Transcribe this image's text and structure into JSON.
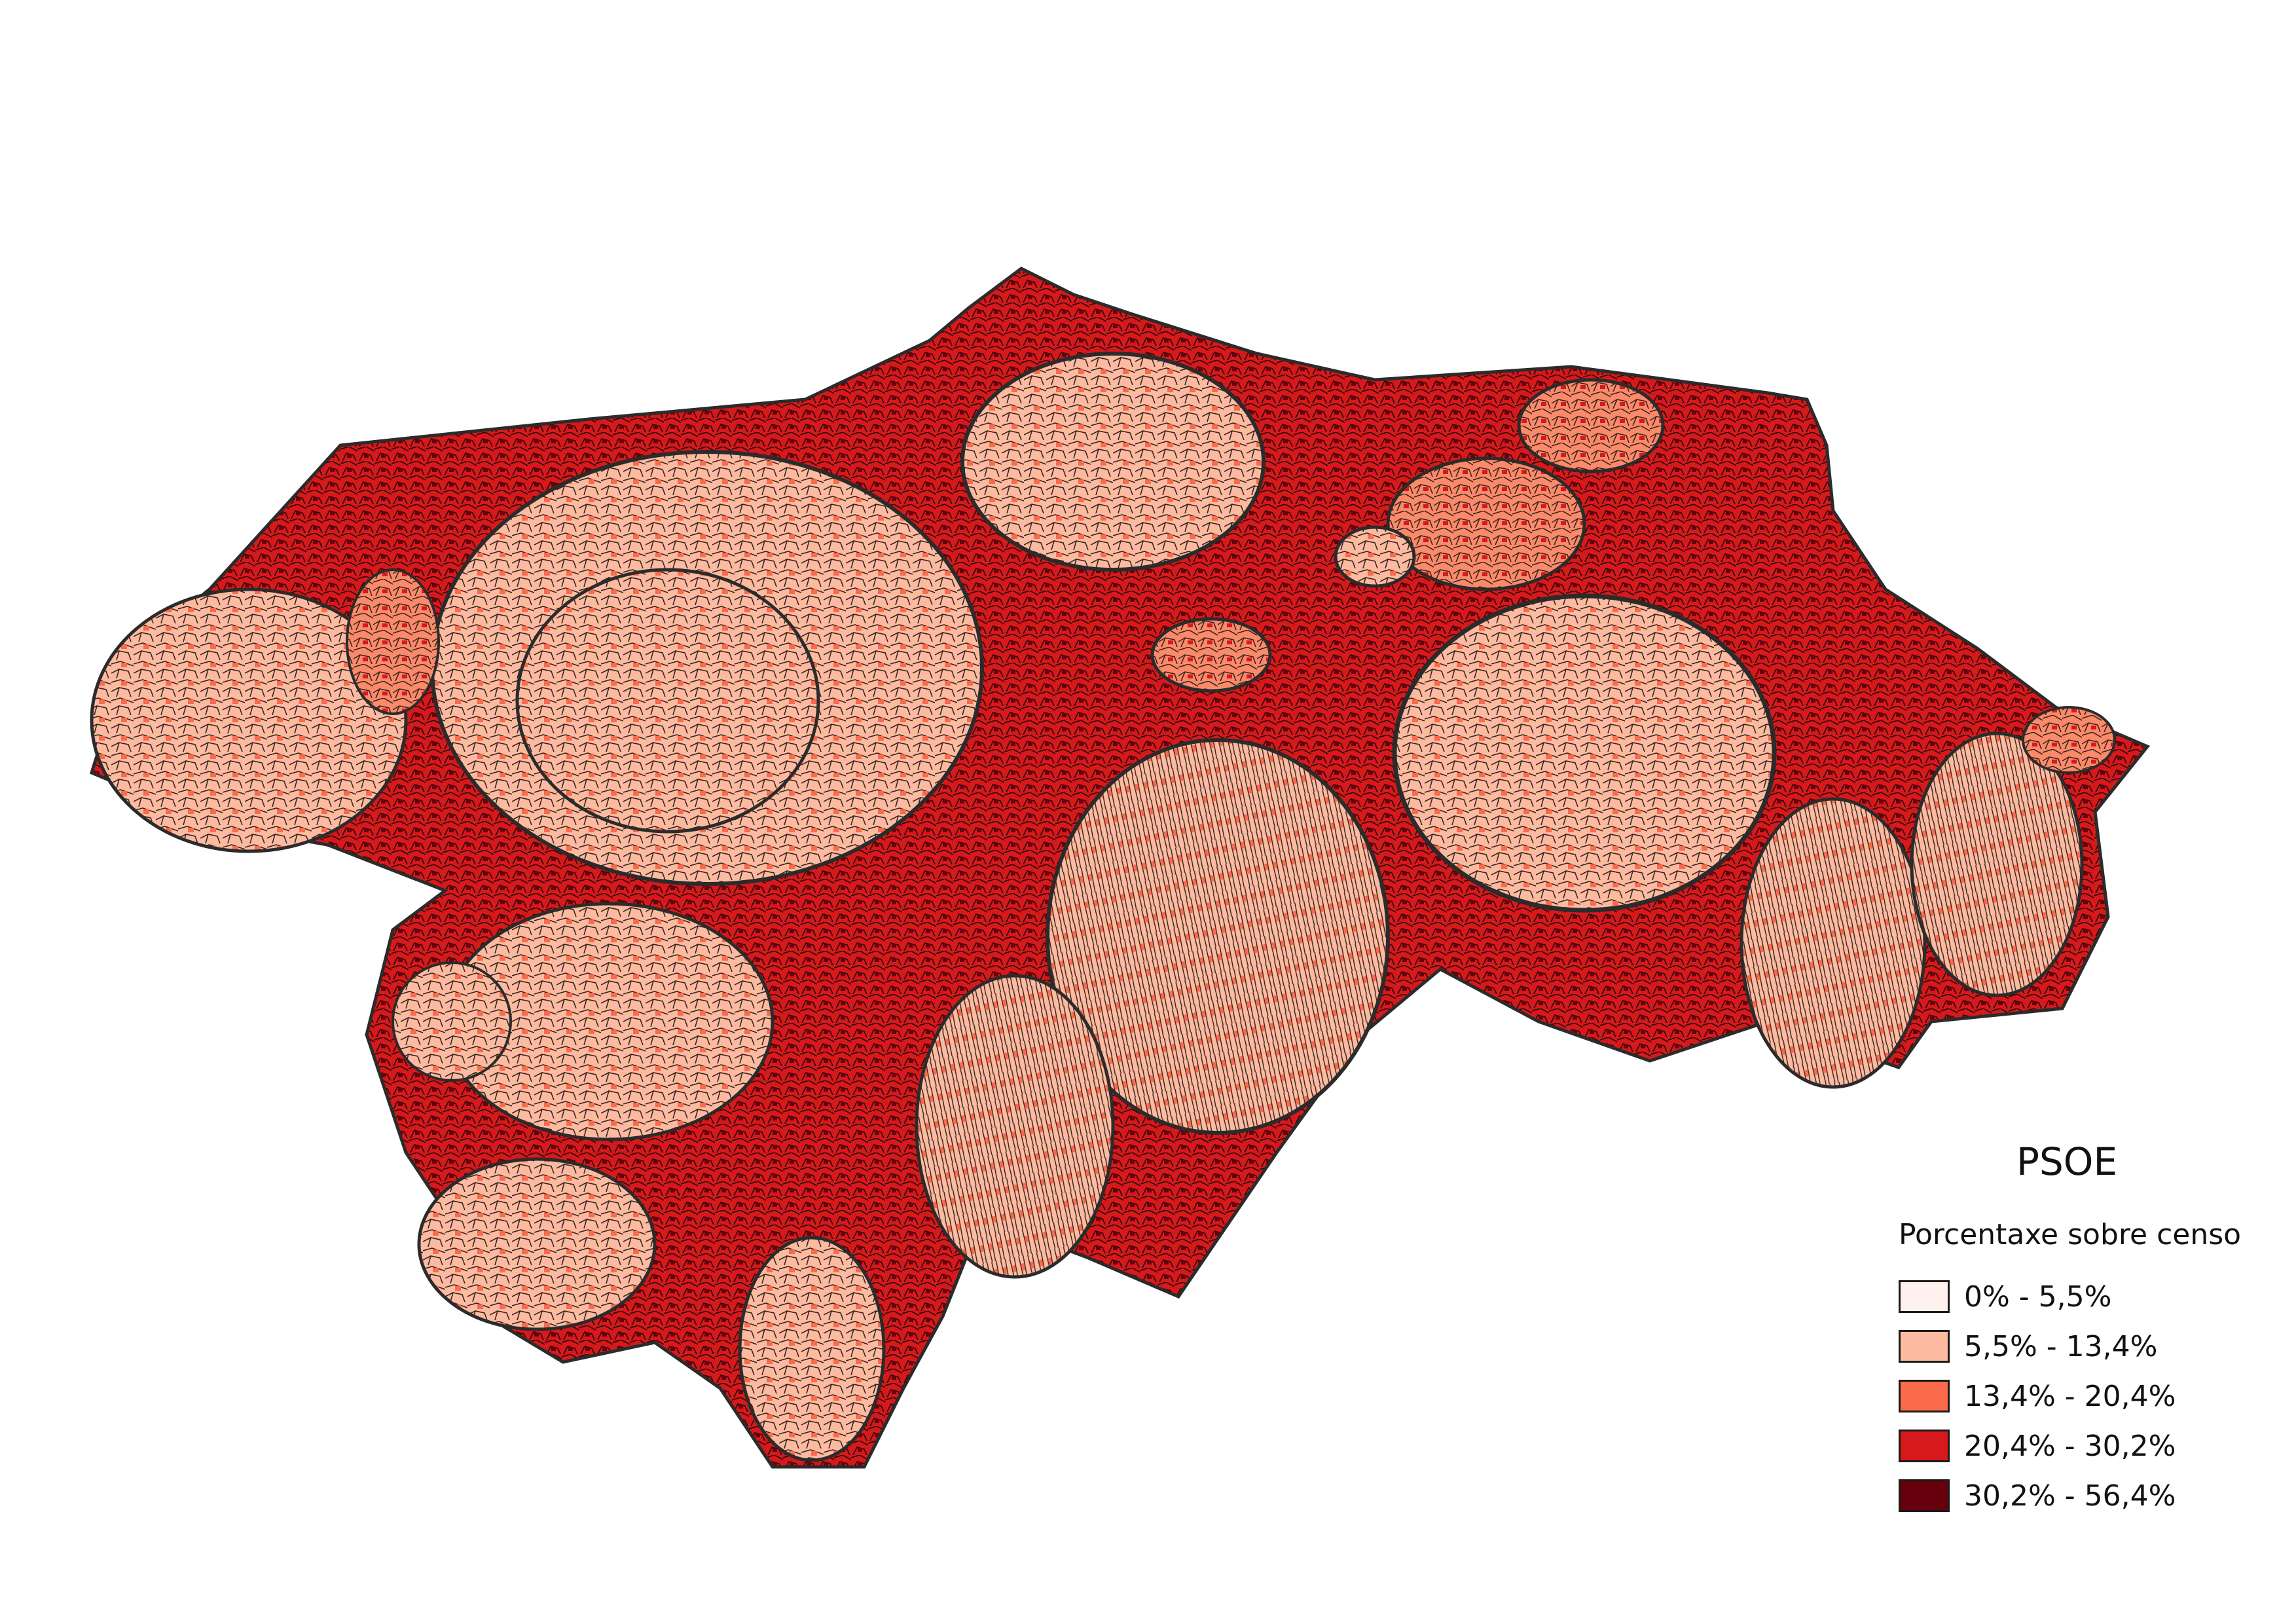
{
  "legend": {
    "title": "PSOE",
    "subtitle": "Porcentaxe sobre censo",
    "classes": [
      {
        "label": "0% - 5,5%",
        "color": "#fff1ee"
      },
      {
        "label": "5,5% - 13,4%",
        "color": "#fcbba1"
      },
      {
        "label": "13,4% - 20,4%",
        "color": "#fb6a4a"
      },
      {
        "label": "20,4% - 30,2%",
        "color": "#d7191c"
      },
      {
        "label": "30,2% - 56,4%",
        "color": "#67000d"
      }
    ]
  },
  "map": {
    "outline_color": "#2b2b2b"
  }
}
